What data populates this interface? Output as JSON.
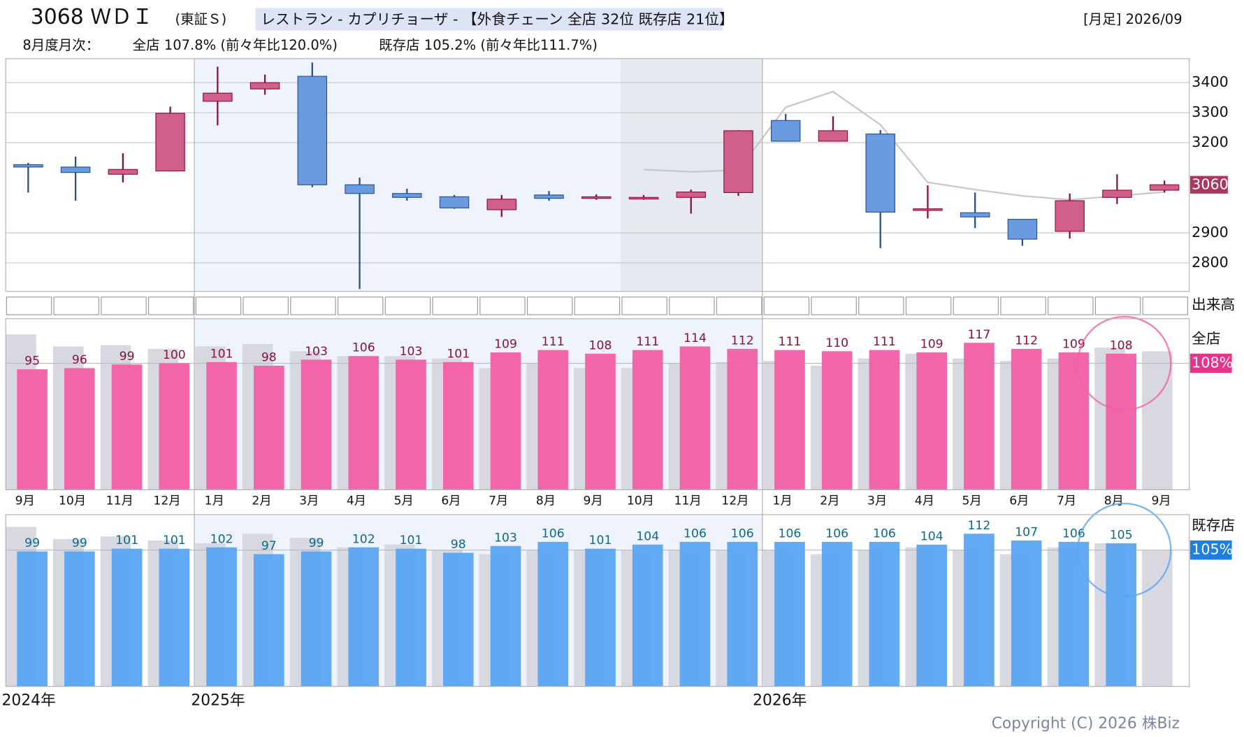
{
  "header": {
    "code": "3068 ＷＤＩ",
    "market": "(東証Ｓ)",
    "sector": "レストラン - カプリチョーザ - 【外食チェーン 全店 32位 既存店 21位】",
    "period": "[月足] 2026/09",
    "monthly_title": "8月度月次：",
    "all_stores": "全店 107.8% (前々年比120.0%)",
    "existing_stores": "既存店 105.2% (前々年比111.7%)"
  },
  "chart_data": [
    {
      "type": "candlestick",
      "up_color": "#d0608a",
      "down_color": "#6a9ae0",
      "ma_color": "#c8c8cc",
      "open": [
        3127,
        3119,
        3095,
        3106,
        3338,
        3379,
        3421,
        3060,
        3031,
        3020,
        2977,
        3026,
        3015,
        3015,
        3018,
        3034,
        3274,
        3205,
        3229,
        2975,
        2967,
        2945,
        2905,
        3018,
        3042
      ],
      "high": [
        3133,
        3154,
        3165,
        3320,
        3453,
        3427,
        3467,
        3084,
        3047,
        3026,
        3026,
        3039,
        3028,
        3026,
        3044,
        3242,
        3296,
        3288,
        3242,
        3058,
        3034,
        2945,
        3031,
        3095,
        3074
      ],
      "low": [
        3034,
        3007,
        3068,
        3106,
        3258,
        3360,
        3052,
        2713,
        3007,
        2980,
        2953,
        3007,
        3010,
        3010,
        2964,
        3023,
        3205,
        3205,
        2849,
        2948,
        2916,
        2857,
        2881,
        2996,
        3034
      ],
      "close": [
        3119,
        3101,
        3111,
        3298,
        3365,
        3400,
        3060,
        3031,
        3018,
        2983,
        3012,
        3015,
        3020,
        3018,
        3036,
        3240,
        3205,
        3240,
        2969,
        2980,
        2953,
        2879,
        3007,
        3042,
        3060
      ],
      "ma": [
        null,
        null,
        null,
        null,
        null,
        null,
        null,
        null,
        null,
        null,
        null,
        null,
        null,
        3111,
        3103,
        3109,
        3318,
        3370,
        3260,
        3068,
        3044,
        3023,
        3010,
        3023,
        3036
      ],
      "ylim": [
        2705,
        3480
      ],
      "yticks": [
        2800,
        2900,
        3200,
        3300,
        3400
      ],
      "grid": true,
      "volume_label": "出来高"
    },
    {
      "type": "bar",
      "name": "全店",
      "current_label": "108%",
      "color": "#f25fa5",
      "label_color": "#8a1040",
      "prev_color": "#d8d8e0",
      "categories": [
        "9月",
        "10月",
        "11月",
        "12月",
        "1月",
        "2月",
        "3月",
        "4月",
        "5月",
        "6月",
        "7月",
        "8月",
        "9月",
        "10月",
        "11月",
        "12月",
        "1月",
        "2月",
        "3月",
        "4月",
        "5月",
        "6月",
        "7月",
        "8月",
        "9月"
      ],
      "values": [
        95,
        96,
        99,
        100,
        101,
        98,
        103,
        106,
        103,
        101,
        109,
        111,
        108,
        111,
        114,
        112,
        111,
        110,
        111,
        109,
        117,
        112,
        109,
        108,
        null
      ],
      "prev_values": [
        124,
        114,
        115,
        112,
        114,
        116,
        110,
        106,
        106,
        104,
        96,
        100,
        96,
        96,
        100,
        101,
        102,
        98,
        104,
        108,
        104,
        102,
        104,
        113,
        110
      ],
      "ylim": [
        -5,
        137
      ],
      "reference": 100
    },
    {
      "type": "bar",
      "name": "既存店",
      "current_label": "105%",
      "color": "#5aa5f2",
      "label_color": "#0e6a86",
      "prev_color": "#d8d8e0",
      "values": [
        99,
        99,
        101,
        101,
        102,
        97,
        99,
        102,
        101,
        98,
        103,
        106,
        101,
        104,
        106,
        106,
        106,
        106,
        106,
        104,
        112,
        107,
        106,
        105,
        null
      ],
      "prev_values": [
        117,
        108,
        110,
        107,
        105,
        112,
        109,
        102,
        104,
        100,
        97,
        100,
        100,
        100,
        100,
        100,
        100,
        97,
        100,
        102,
        100,
        97,
        102,
        105,
        100
      ],
      "ylim": [
        0,
        126
      ],
      "reference": 100,
      "year_labels": [
        "2024年",
        "2025年",
        "2026年"
      ]
    }
  ],
  "footer": {
    "copyright": "Copyright (C) 2026 株Biz"
  }
}
